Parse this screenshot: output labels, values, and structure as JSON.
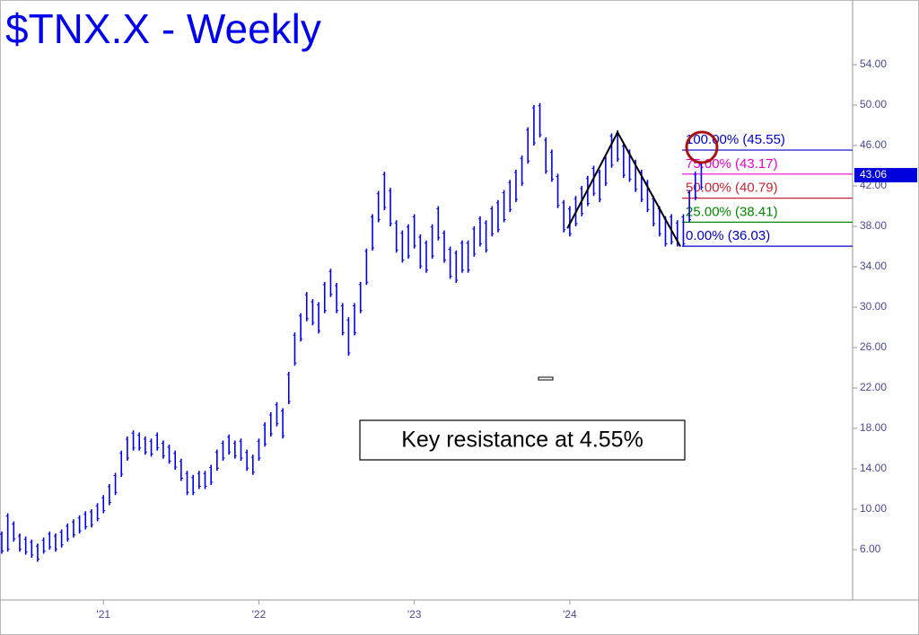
{
  "chart_data": {
    "type": "ohlc",
    "title": "$TNX.X - Weekly",
    "color": "#0000ee",
    "high": [
      7.8,
      9.6,
      8.8,
      7.6,
      7.3,
      7.0,
      6.6,
      7.2,
      7.8,
      7.6,
      8.0,
      8.6,
      9.0,
      9.4,
      9.8,
      10.0,
      10.6,
      11.4,
      12.5,
      13.6,
      15.8,
      17.2,
      17.8,
      17.6,
      17.2,
      17.0,
      17.6,
      16.8,
      16.4,
      15.8,
      15.0,
      13.8,
      13.4,
      13.8,
      13.8,
      14.4,
      15.9,
      16.8,
      17.4,
      16.8,
      17.0,
      15.9,
      15.4,
      17.0,
      18.6,
      19.6,
      20.6,
      20.0,
      23.6,
      27.5,
      29.4,
      31.5,
      30.8,
      30.5,
      32.5,
      33.8,
      32.4,
      30.4,
      29.0,
      30.4,
      32.5,
      35.8,
      39.2,
      41.5,
      43.4,
      41.8,
      38.6,
      37.6,
      38.2,
      39.2,
      37.2,
      36.6,
      38.2,
      40.0,
      37.6,
      36.0,
      35.6,
      36.6,
      36.6,
      38.0,
      39.0,
      38.6,
      40.0,
      40.6,
      41.6,
      42.6,
      43.6,
      45.0,
      47.8,
      50.0,
      50.2,
      46.8,
      45.6,
      43.2,
      40.6,
      40.0,
      41.0,
      42.0,
      43.0,
      44.0,
      43.6,
      45.0,
      47.2,
      47.5,
      46.2,
      45.6,
      44.6,
      43.6,
      42.6,
      41.0,
      40.0,
      39.0,
      39.2,
      38.6,
      39.2,
      41.6,
      43.4,
      44.4
    ],
    "low": [
      5.6,
      5.8,
      6.8,
      5.8,
      5.5,
      5.2,
      4.8,
      5.6,
      6.0,
      5.8,
      6.2,
      6.8,
      7.2,
      7.6,
      8.0,
      8.2,
      8.8,
      9.6,
      10.4,
      11.4,
      13.2,
      14.8,
      15.8,
      15.8,
      15.4,
      15.2,
      15.8,
      15.0,
      14.5,
      13.9,
      12.8,
      11.4,
      11.4,
      12.0,
      12.0,
      12.4,
      13.8,
      14.8,
      15.4,
      15.0,
      14.8,
      13.8,
      13.4,
      14.8,
      16.2,
      17.2,
      18.2,
      17.0,
      20.4,
      24.2,
      26.6,
      28.6,
      28.2,
      27.4,
      29.4,
      31.0,
      29.4,
      27.2,
      25.2,
      27.2,
      29.4,
      32.2,
      35.6,
      38.4,
      39.6,
      38.0,
      35.4,
      34.4,
      34.8,
      35.8,
      33.8,
      33.4,
      34.8,
      36.6,
      34.4,
      32.8,
      32.4,
      33.4,
      33.4,
      35.0,
      36.0,
      35.4,
      37.0,
      37.4,
      38.4,
      39.4,
      40.4,
      42.0,
      44.2,
      46.0,
      46.8,
      43.2,
      42.4,
      39.8,
      37.4,
      37.0,
      38.0,
      39.0,
      40.0,
      41.0,
      40.4,
      42.0,
      43.8,
      44.4,
      42.8,
      42.4,
      41.4,
      40.4,
      39.4,
      38.0,
      37.0,
      36.0,
      36.2,
      36.0,
      36.0,
      38.4,
      40.6,
      41.6
    ],
    "xlim": [
      -0.3,
      142.3
    ],
    "xticks": [
      {
        "value": 17,
        "label": "'21"
      },
      {
        "value": 43,
        "label": "'22"
      },
      {
        "value": 69,
        "label": "'23"
      },
      {
        "value": 95,
        "label": "'24"
      }
    ],
    "ylim": [
      1.02,
      60.4
    ],
    "yticks": [
      {
        "value": 6,
        "label": "6.00"
      },
      {
        "value": 10,
        "label": "10.00"
      },
      {
        "value": 14,
        "label": "14.00"
      },
      {
        "value": 18,
        "label": "18.00"
      },
      {
        "value": 22,
        "label": "22.00"
      },
      {
        "value": 26,
        "label": "26.00"
      },
      {
        "value": 30,
        "label": "30.00"
      },
      {
        "value": 34,
        "label": "34.00"
      },
      {
        "value": 38,
        "label": "38.00"
      },
      {
        "value": 42,
        "label": "42.00"
      },
      {
        "value": 46,
        "label": "46.00"
      },
      {
        "value": 50,
        "label": "50.00"
      },
      {
        "value": 54,
        "label": "54.00"
      }
    ],
    "last_price": {
      "value": 43.06,
      "label": "43.06",
      "color": "#0000dd"
    },
    "fib_levels": [
      {
        "value": 45.55,
        "label": "100.00% (45.55)",
        "color": "#0000cc"
      },
      {
        "value": 43.17,
        "label": "75.00% (43.17)",
        "color": "#ee00cc"
      },
      {
        "value": 40.79,
        "label": "50.00% (40.79)",
        "color": "#cc2233"
      },
      {
        "value": 38.41,
        "label": "25.00% (38.41)",
        "color": "#008800"
      },
      {
        "value": 36.03,
        "label": "0.00% (36.03)",
        "color": "#0000cc"
      }
    ],
    "pattern": {
      "x": [
        94.6,
        103,
        113.5
      ],
      "y": [
        37.8,
        47.3,
        36.0
      ],
      "color": "#000000"
    },
    "annotation": "Key resistance at 4.55%"
  }
}
